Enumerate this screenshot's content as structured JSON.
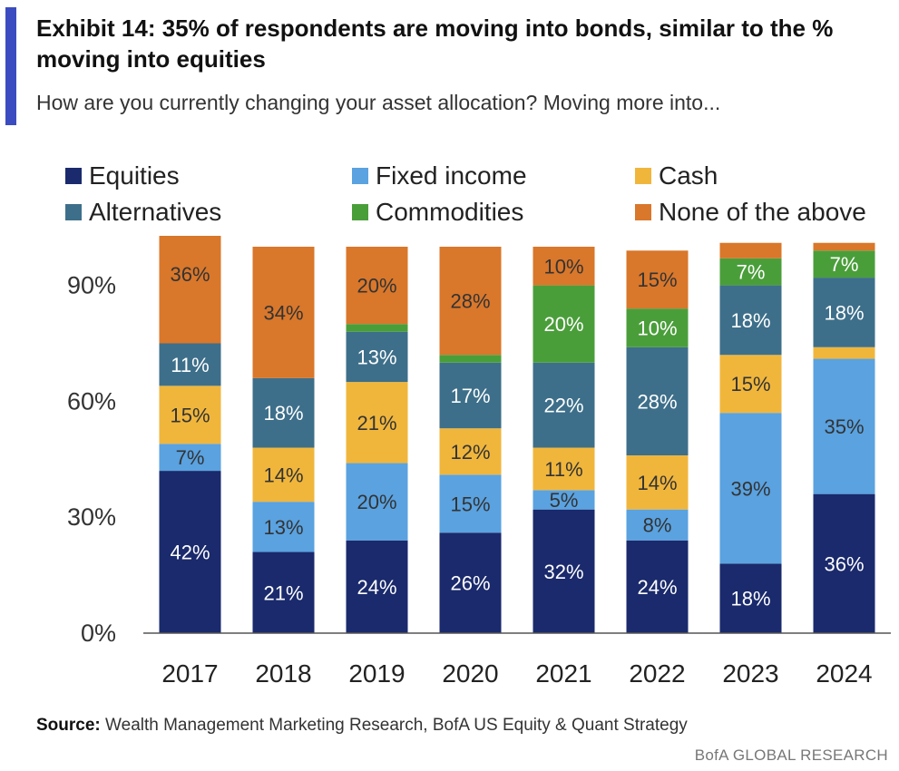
{
  "exhibit": {
    "title": "Exhibit 14: 35% of respondents are moving into bonds, similar to the % moving into equities",
    "subtitle": "How are you currently changing your asset allocation? Moving more into..."
  },
  "source": {
    "label": "Source:",
    "text": "Wealth Management Marketing Research, BofA US Equity & Quant Strategy"
  },
  "footer": "BofA GLOBAL RESEARCH",
  "chart_data": {
    "type": "bar",
    "stacked": true,
    "categories": [
      "2017",
      "2018",
      "2019",
      "2020",
      "2021",
      "2022",
      "2023",
      "2024"
    ],
    "series": [
      {
        "name": "Equities",
        "color": "#1a2a6c",
        "values": [
          42,
          21,
          24,
          26,
          32,
          24,
          18,
          36
        ],
        "labels": [
          "42%",
          "21%",
          "24%",
          "26%",
          "32%",
          "24%",
          "18%",
          "36%"
        ]
      },
      {
        "name": "Fixed income",
        "color": "#5aa2e0",
        "values": [
          7,
          13,
          20,
          15,
          5,
          8,
          39,
          35
        ],
        "labels": [
          "7%",
          "13%",
          "20%",
          "15%",
          "5%",
          "8%",
          "39%",
          "35%"
        ]
      },
      {
        "name": "Cash",
        "color": "#f0b63c",
        "values": [
          15,
          14,
          21,
          12,
          11,
          14,
          15,
          3
        ],
        "labels": [
          "15%",
          "14%",
          "21%",
          "12%",
          "11%",
          "14%",
          "15%",
          ""
        ]
      },
      {
        "name": "Alternatives",
        "color": "#3d6f8a",
        "values": [
          11,
          18,
          13,
          17,
          22,
          28,
          18,
          18
        ],
        "labels": [
          "11%",
          "18%",
          "13%",
          "17%",
          "22%",
          "28%",
          "18%",
          "18%"
        ]
      },
      {
        "name": "Commodities",
        "color": "#4a9e3a",
        "values": [
          0,
          0,
          2,
          2,
          20,
          10,
          7,
          7
        ],
        "labels": [
          "",
          "",
          "",
          "",
          "20%",
          "10%",
          "7%",
          "7%"
        ]
      },
      {
        "name": "None of the above",
        "color": "#d9772b",
        "values": [
          36,
          34,
          20,
          28,
          10,
          15,
          4,
          2
        ],
        "labels": [
          "36%",
          "34%",
          "20%",
          "28%",
          "10%",
          "15%",
          "",
          ""
        ]
      }
    ],
    "legend_order": [
      "Equities",
      "Fixed income",
      "Cash",
      "Alternatives",
      "Commodities",
      "None of the above"
    ],
    "yticks": [
      "0%",
      "30%",
      "60%",
      "90%"
    ],
    "ytick_values": [
      0,
      30,
      60,
      90
    ],
    "ylim": [
      0,
      100
    ],
    "legend_position": "top",
    "grid": false
  }
}
